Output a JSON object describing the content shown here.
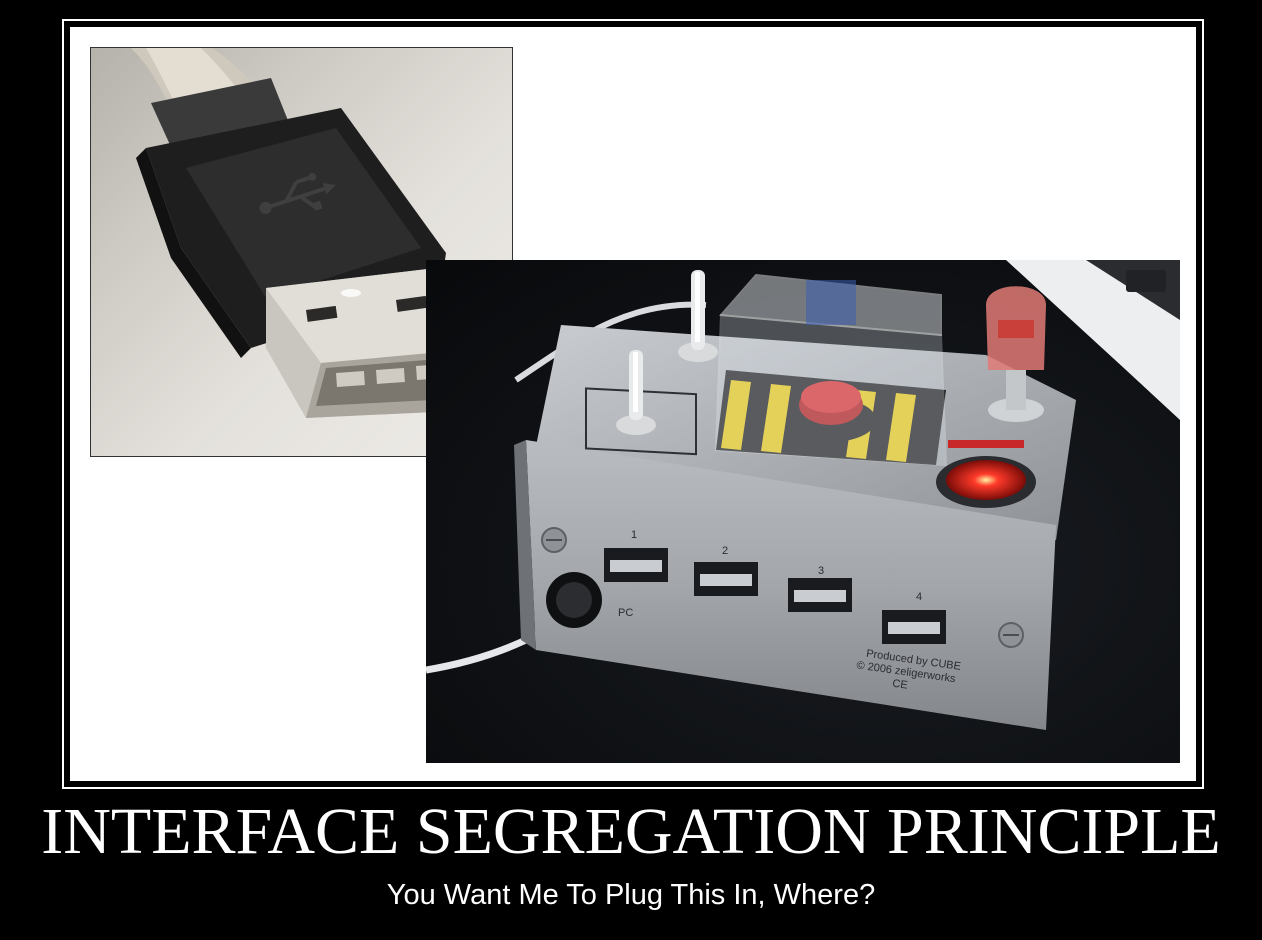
{
  "poster": {
    "title": "INTERFACE SEGREGATION PRINCIPLE",
    "subtitle": "You Want Me To Plug This In, Where?"
  },
  "hub": {
    "port_numbers": [
      "1",
      "2",
      "3",
      "4"
    ],
    "pc_label": "PC",
    "label_line1": "Produced by CUBE",
    "label_line2": "© 2006 zeligerworks",
    "label_line3": "CE"
  },
  "colors": {
    "background": "#000000",
    "frame": "#ffffff",
    "text": "#ffffff",
    "button_red": "#c8282a",
    "led_red": "#ff3a2a"
  }
}
